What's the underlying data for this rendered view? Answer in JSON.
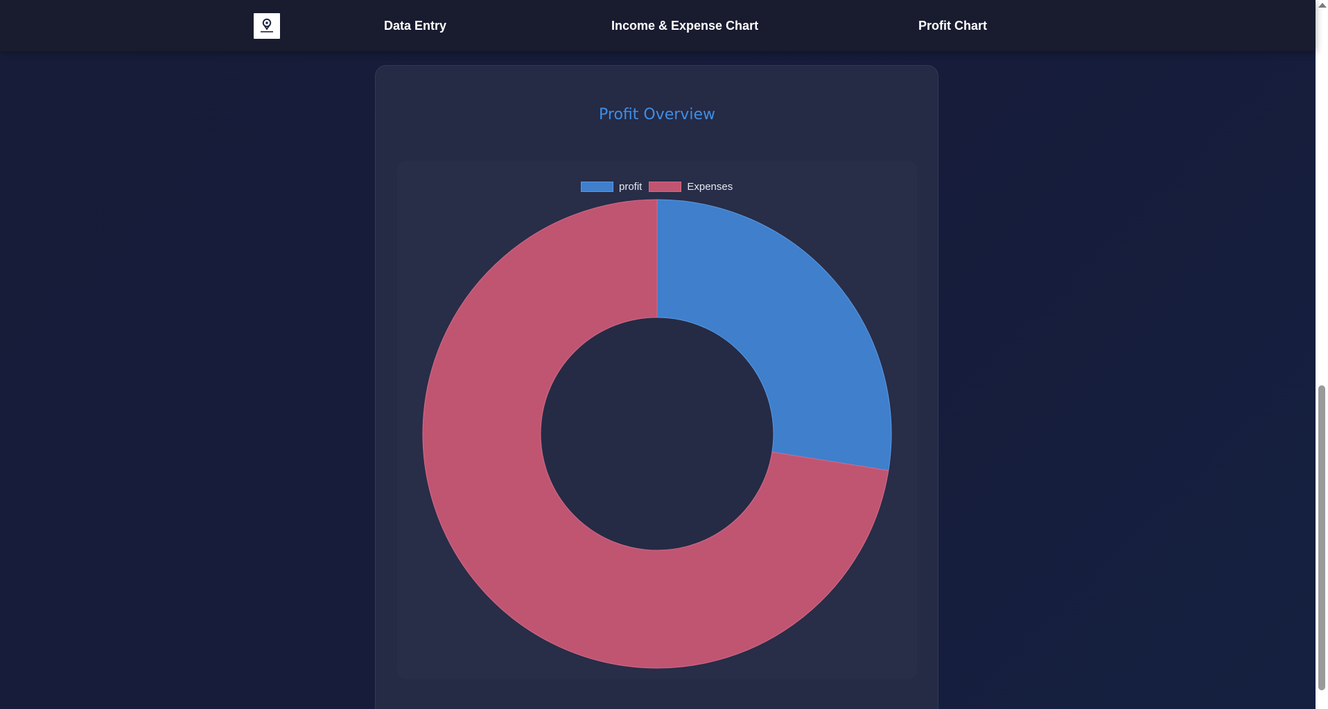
{
  "navbar": {
    "logo_icon": "logo-icon",
    "links": [
      {
        "label": "Data Entry"
      },
      {
        "label": "Income & Expense Chart"
      },
      {
        "label": "Profit Chart"
      }
    ]
  },
  "card": {
    "title": "Profit Overview"
  },
  "colors": {
    "title": "#3e8ee6",
    "profit": "#3f7fcc",
    "expenses": "#c05572",
    "donut_hole": "#252b45"
  },
  "chart_data": {
    "type": "pie",
    "variant": "doughnut",
    "title": "Profit Overview",
    "labels": [
      "profit",
      "Expenses"
    ],
    "values": [
      27.5,
      72.5
    ],
    "value_unit": "percent of total",
    "legend": "top",
    "legend_entries": [
      "profit",
      "Expenses"
    ]
  }
}
